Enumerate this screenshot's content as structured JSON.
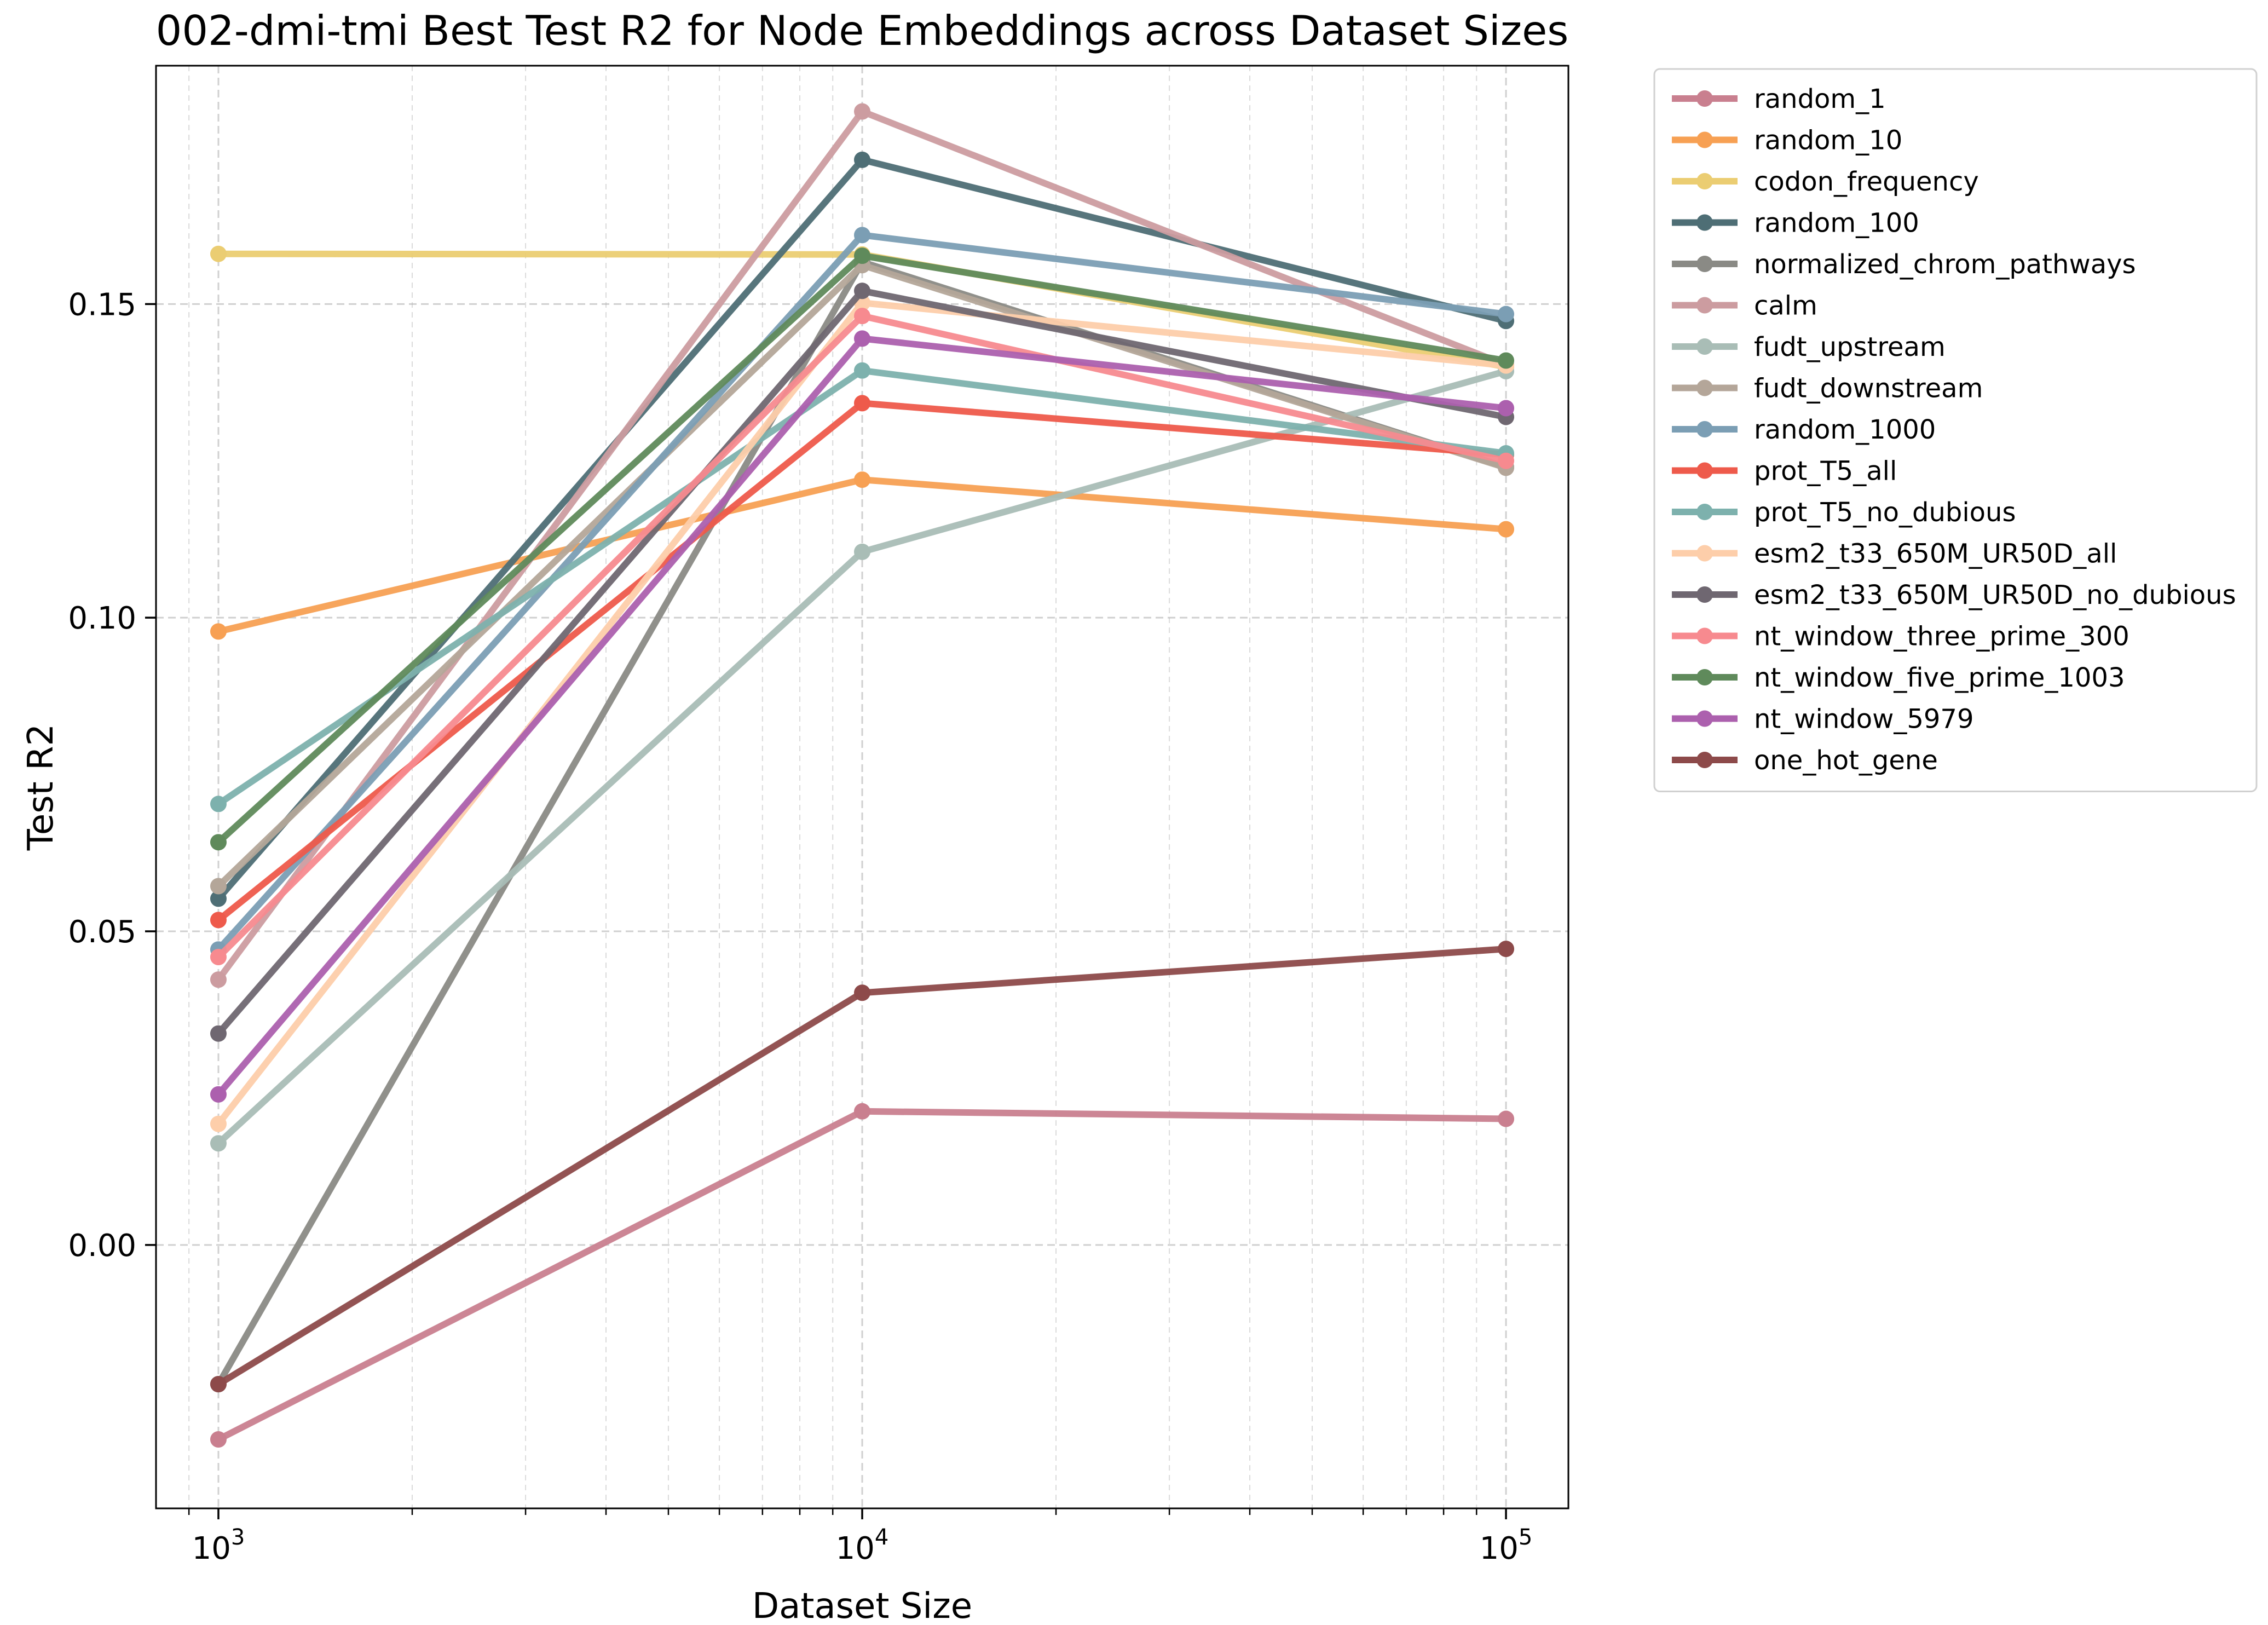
{
  "chart_data": {
    "type": "line",
    "title": "002-dmi-tmi Best Test R2 for Node Embeddings across Dataset Sizes",
    "xlabel": "Dataset Size",
    "ylabel": "Test R2",
    "xscale": "log",
    "x": [
      1000,
      10000,
      100000
    ],
    "x_tick_labels": [
      {
        "base": "10",
        "exp": "3"
      },
      {
        "base": "10",
        "exp": "4"
      },
      {
        "base": "10",
        "exp": "5"
      }
    ],
    "xlim": [
      800,
      125000
    ],
    "ylim": [
      -0.042,
      0.188
    ],
    "y_ticks": [
      0.0,
      0.05,
      0.1,
      0.15
    ],
    "y_tick_labels": [
      "0.00",
      "0.05",
      "0.10",
      "0.15"
    ],
    "grid": true,
    "legend_position": "outside-top-right",
    "series": [
      {
        "name": "random_1",
        "color": "#c97f8f",
        "values": [
          -0.031,
          0.0213,
          0.0201
        ]
      },
      {
        "name": "random_10",
        "color": "#f7a053",
        "values": [
          0.0978,
          0.122,
          0.1141
        ]
      },
      {
        "name": "codon_frequency",
        "color": "#ebcd72",
        "values": [
          0.158,
          0.1579,
          0.14
        ]
      },
      {
        "name": "random_100",
        "color": "#4e6e75",
        "values": [
          0.0552,
          0.173,
          0.1473
        ]
      },
      {
        "name": "normalized_chrom_pathways",
        "color": "#8a8a85",
        "values": [
          -0.0222,
          0.1567,
          0.124
        ]
      },
      {
        "name": "calm",
        "color": "#cc9ca0",
        "values": [
          0.0423,
          0.1807,
          0.1403
        ]
      },
      {
        "name": "fudt_upstream",
        "color": "#a9bdb6",
        "values": [
          0.0162,
          0.1105,
          0.1393
        ]
      },
      {
        "name": "fudt_downstream",
        "color": "#b4a699",
        "values": [
          0.0572,
          0.1562,
          0.1239
        ]
      },
      {
        "name": "random_1000",
        "color": "#7b9eb4",
        "values": [
          0.0471,
          0.161,
          0.1484
        ]
      },
      {
        "name": "prot_T5_all",
        "color": "#ee5a4b",
        "values": [
          0.0518,
          0.1342,
          0.126
        ]
      },
      {
        "name": "prot_T5_no_dubious",
        "color": "#7db1ad",
        "values": [
          0.0703,
          0.1394,
          0.1262
        ]
      },
      {
        "name": "esm2_t33_650M_UR50D_all",
        "color": "#fdceaa",
        "values": [
          0.0193,
          0.1502,
          0.1402
        ]
      },
      {
        "name": "esm2_t33_650M_UR50D_no_dubious",
        "color": "#6f6771",
        "values": [
          0.0337,
          0.1521,
          0.132
        ]
      },
      {
        "name": "nt_window_three_prime_300",
        "color": "#f78a8f",
        "values": [
          0.0459,
          0.1481,
          0.125
        ]
      },
      {
        "name": "nt_window_five_prime_1003",
        "color": "#5f8a5b",
        "values": [
          0.0642,
          0.1577,
          0.141
        ]
      },
      {
        "name": "nt_window_5979",
        "color": "#ac60ae",
        "values": [
          0.024,
          0.1445,
          0.1334
        ]
      },
      {
        "name": "one_hot_gene",
        "color": "#8d4a4a",
        "values": [
          -0.0222,
          0.0402,
          0.0472
        ]
      }
    ]
  }
}
